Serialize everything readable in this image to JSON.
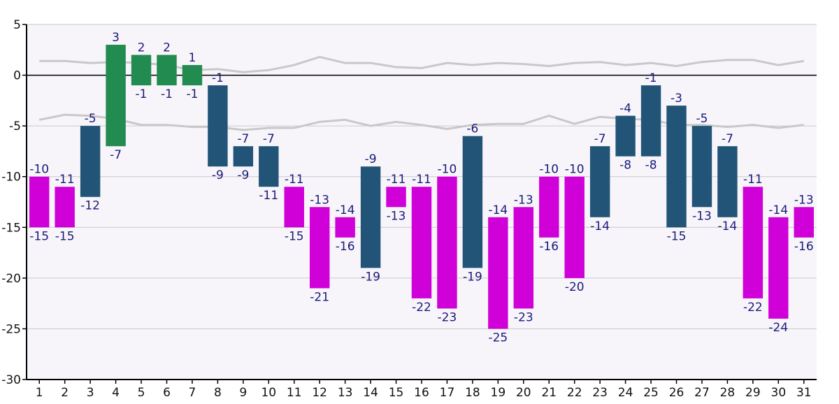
{
  "chart_data": {
    "type": "bar",
    "subtype": "floating-range",
    "title": "",
    "xlabel": "",
    "ylabel": "",
    "categories": [
      "1",
      "2",
      "3",
      "4",
      "5",
      "6",
      "7",
      "8",
      "9",
      "10",
      "11",
      "12",
      "13",
      "14",
      "15",
      "16",
      "17",
      "18",
      "19",
      "20",
      "21",
      "22",
      "23",
      "24",
      "25",
      "26",
      "27",
      "28",
      "29",
      "30",
      "31"
    ],
    "ranges": [
      [
        -10,
        -15
      ],
      [
        -11,
        -15
      ],
      [
        -5,
        -12
      ],
      [
        3,
        -7
      ],
      [
        2,
        -1
      ],
      [
        2,
        -1
      ],
      [
        1,
        -1
      ],
      [
        -1,
        -9
      ],
      [
        -7,
        -9
      ],
      [
        -7,
        -11
      ],
      [
        -11,
        -15
      ],
      [
        -13,
        -21
      ],
      [
        -14,
        -16
      ],
      [
        -9,
        -19
      ],
      [
        -11,
        -13
      ],
      [
        -11,
        -22
      ],
      [
        -10,
        -23
      ],
      [
        -6,
        -19
      ],
      [
        -14,
        -25
      ],
      [
        -13,
        -23
      ],
      [
        -10,
        -16
      ],
      [
        -10,
        -20
      ],
      [
        -7,
        -14
      ],
      [
        -4,
        -8
      ],
      [
        -1,
        -8
      ],
      [
        -3,
        -15
      ],
      [
        -5,
        -13
      ],
      [
        -7,
        -14
      ],
      [
        -11,
        -22
      ],
      [
        -14,
        -24
      ],
      [
        -13,
        -16
      ]
    ],
    "bar_colors": [
      "magenta",
      "magenta",
      "blue",
      "green",
      "green",
      "green",
      "green",
      "blue",
      "blue",
      "blue",
      "magenta",
      "magenta",
      "magenta",
      "blue",
      "magenta",
      "magenta",
      "magenta",
      "blue",
      "magenta",
      "magenta",
      "magenta",
      "magenta",
      "blue",
      "blue",
      "blue",
      "blue",
      "blue",
      "blue",
      "magenta",
      "magenta",
      "magenta"
    ],
    "palette": {
      "magenta": "#d000d8",
      "blue": "#225477",
      "green": "#228b4f"
    },
    "reference_lines": [
      {
        "values": [
          1.4,
          1.4,
          1.2,
          1.3,
          1.2,
          1.0,
          0.5,
          0.6,
          0.3,
          0.5,
          1.0,
          1.8,
          1.2,
          1.2,
          0.8,
          0.7,
          1.2,
          1.0,
          1.2,
          1.1,
          0.9,
          1.2,
          1.3,
          1.0,
          1.2,
          0.9,
          1.3,
          1.5,
          1.5,
          1.0,
          1.4
        ],
        "color": "#c8c8c8"
      },
      {
        "values": [
          -4.4,
          -3.9,
          -4.0,
          -4.3,
          -4.9,
          -4.9,
          -5.1,
          -5.1,
          -5.4,
          -5.2,
          -5.2,
          -4.6,
          -4.4,
          -5.0,
          -4.6,
          -4.9,
          -5.3,
          -4.9,
          -4.8,
          -4.8,
          -4.0,
          -4.8,
          -4.1,
          -4.3,
          -4.4,
          -4.9,
          -4.9,
          -5.1,
          -4.9,
          -5.2,
          -4.9
        ],
        "color": "#c8c8c8"
      }
    ],
    "ylim": [
      -30,
      5
    ],
    "yticks": [
      "5",
      "0",
      "-5",
      "-10",
      "-15",
      "-20",
      "-25",
      "-30"
    ],
    "ytick_values": [
      5,
      0,
      -5,
      -10,
      -15,
      -20,
      -25,
      -30
    ],
    "grid": true,
    "zero_line": true,
    "legend": "none"
  }
}
